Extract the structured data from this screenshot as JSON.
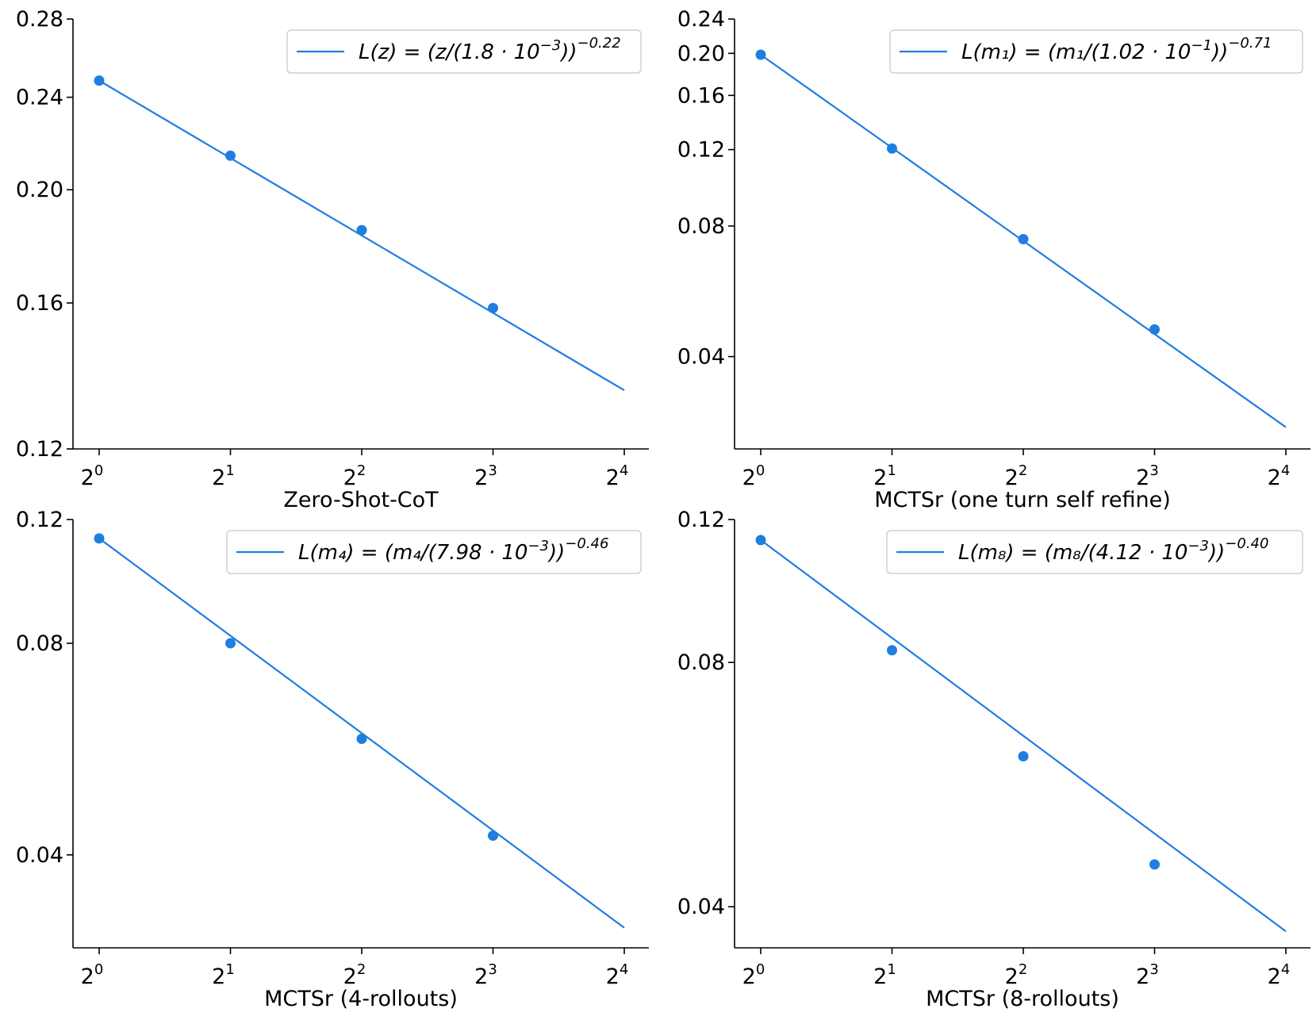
{
  "chart_data": [
    {
      "type": "line",
      "scale": "log-log",
      "xlabel": "Zero-Shot-CoT",
      "ylabel": "",
      "x_base": "2",
      "x_exponents": [
        "0",
        "1",
        "2",
        "3",
        "4"
      ],
      "x": [
        1,
        2,
        4,
        8
      ],
      "fit_x": [
        1,
        16
      ],
      "fit_y": [
        0.248,
        0.1347
      ],
      "points": [
        0.248,
        0.2139,
        0.1847,
        0.1584
      ],
      "ylim": [
        0.12,
        0.28
      ],
      "yticks": [
        0.12,
        0.16,
        0.2,
        0.24,
        0.28
      ],
      "ytick_labels": [
        "0.12",
        "0.16",
        "0.20",
        "0.24",
        "0.28"
      ],
      "legend": {
        "position": "top-right",
        "lhs": "L(z) = (z/(1.8 · 10",
        "exp_inner": "−3",
        "close": "))",
        "exp_outer": "−0.22"
      }
    },
    {
      "type": "line",
      "scale": "log-log",
      "xlabel": "MCTSr (one turn self refine)",
      "ylabel": "",
      "x_base": "2",
      "x_exponents": [
        "0",
        "1",
        "2",
        "3",
        "4"
      ],
      "x": [
        1,
        2,
        4,
        8
      ],
      "fit_x": [
        1,
        16
      ],
      "fit_y": [
        0.1986,
        0.0275
      ],
      "points": [
        0.1986,
        0.1207,
        0.0746,
        0.0462
      ],
      "ylim": [
        0.0245,
        0.24
      ],
      "yticks": [
        0.04,
        0.08,
        0.12,
        0.16,
        0.2,
        0.24
      ],
      "ytick_labels": [
        "0.04",
        "0.08",
        "0.12",
        "0.16",
        "0.20",
        "0.24"
      ],
      "legend": {
        "position": "top-right",
        "lhs": "L(m₁) = (m₁/(1.02 · 10",
        "exp_inner": "−1",
        "close": "))",
        "exp_outer": "−0.71"
      }
    },
    {
      "type": "line",
      "scale": "log-log",
      "xlabel": "MCTSr (4-rollouts)",
      "ylabel": "",
      "x_base": "2",
      "x_exponents": [
        "0",
        "1",
        "2",
        "3",
        "4"
      ],
      "x": [
        1,
        2,
        4,
        8
      ],
      "fit_x": [
        1,
        16
      ],
      "fit_y": [
        0.1128,
        0.0315
      ],
      "points": [
        0.1128,
        0.08,
        0.0585,
        0.0426
      ],
      "ylim": [
        0.0295,
        0.12
      ],
      "yticks": [
        0.04,
        0.08,
        0.12
      ],
      "ytick_labels": [
        "0.04",
        "0.08",
        "0.12"
      ],
      "legend": {
        "position": "top-right",
        "lhs": "L(m₄) = (m₄/(7.98 · 10",
        "exp_inner": "−3",
        "close": "))",
        "exp_outer": "−0.46"
      }
    },
    {
      "type": "line",
      "scale": "log-log",
      "xlabel": "MCTSr (8-rollouts)",
      "ylabel": "",
      "x_base": "2",
      "x_exponents": [
        "0",
        "1",
        "2",
        "3",
        "4"
      ],
      "x": [
        1,
        2,
        4,
        8
      ],
      "fit_x": [
        1,
        16
      ],
      "fit_y": [
        0.1132,
        0.0373
      ],
      "points": [
        0.1132,
        0.0828,
        0.0613,
        0.0451
      ],
      "ylim": [
        0.0356,
        0.12
      ],
      "yticks": [
        0.04,
        0.08,
        0.12
      ],
      "ytick_labels": [
        "0.04",
        "0.08",
        "0.12"
      ],
      "legend": {
        "position": "top-right",
        "lhs": "L(m₈) = (m₈/(4.12 · 10",
        "exp_inner": "−3",
        "close": "))",
        "exp_outer": "−0.40"
      }
    }
  ],
  "colors": {
    "series": "#1f7ee0",
    "axis": "#000000",
    "legend_border": "#d0d0d0",
    "background": "#ffffff"
  }
}
